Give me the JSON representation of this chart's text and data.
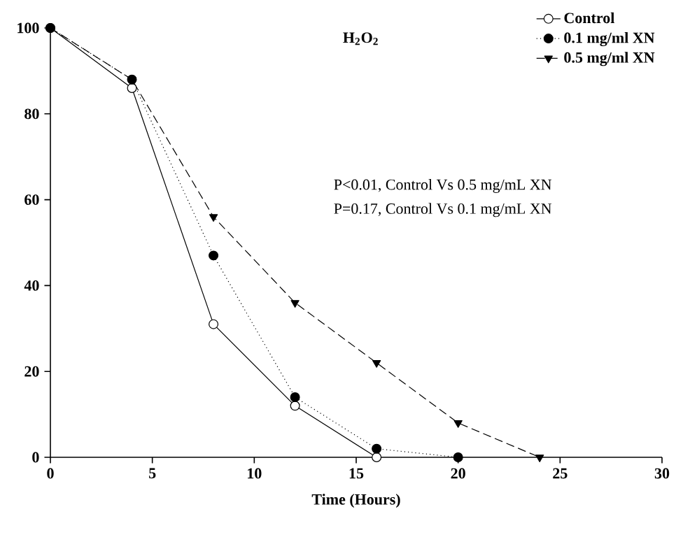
{
  "chart_data": {
    "type": "line",
    "xlabel": "Time (Hours)",
    "series": [
      {
        "name": "Control",
        "color": "#000000",
        "marker": "circle",
        "line_style": "solid",
        "x": [
          0,
          4,
          8,
          12,
          16
        ],
        "values": [
          100,
          86,
          31,
          12,
          0
        ]
      },
      {
        "name": "0.1 mg/ml XN",
        "color": "#000000",
        "marker": "circle",
        "line_style": "dotted",
        "x": [
          0,
          4,
          8,
          12,
          16,
          20
        ],
        "values": [
          100,
          88,
          47,
          14,
          2,
          0
        ]
      },
      {
        "name": "0.5 mg/ml XN",
        "color": "#000000",
        "marker": "triangle",
        "line_style": "dashed",
        "x": [
          0,
          4,
          8,
          12,
          16,
          20,
          24
        ],
        "values": [
          100,
          88,
          56,
          36,
          22,
          8,
          0
        ]
      }
    ],
    "xlim": [
      0,
      30
    ],
    "ylim": [
      0,
      100
    ],
    "xticks": [
      0,
      5,
      10,
      15,
      20,
      25,
      30
    ],
    "yticks": [
      0,
      20,
      40,
      60,
      80,
      100
    ],
    "grid": false,
    "legend": "top right",
    "annotations": [
      "H$_{2}$O$_{2}$",
      "P<0.01, Control Vs 0.5 mg/mL XN",
      "P=0.17, Control Vs 0.1 mg/mL XN"
    ]
  }
}
